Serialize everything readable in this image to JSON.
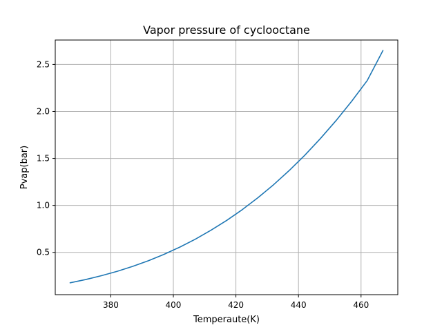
{
  "chart_data": {
    "type": "line",
    "title": "Vapor pressure of cyclooctane",
    "xlabel": "Temperaute(K)",
    "ylabel": "Pvap(bar)",
    "xlim": [
      362.25,
      471.75
    ],
    "ylim": [
      0.05,
      2.76
    ],
    "xticks": [
      380,
      400,
      420,
      440,
      460
    ],
    "yticks": [
      0.5,
      1.0,
      1.5,
      2.0,
      2.5
    ],
    "xtick_labels": [
      "380",
      "400",
      "420",
      "440",
      "460"
    ],
    "ytick_labels": [
      "0.5",
      "1.0",
      "1.5",
      "2.0",
      "2.5"
    ],
    "grid": true,
    "series": [
      {
        "name": "",
        "color": "#1f77b4",
        "x": [
          367,
          372,
          377,
          382,
          387,
          392,
          397,
          402,
          407,
          412,
          417,
          422,
          427,
          432,
          437,
          442,
          447,
          452,
          457,
          462,
          467
        ],
        "y": [
          0.176,
          0.211,
          0.252,
          0.298,
          0.351,
          0.411,
          0.479,
          0.555,
          0.64,
          0.735,
          0.839,
          0.954,
          1.081,
          1.219,
          1.37,
          1.533,
          1.711,
          1.902,
          2.108,
          2.33,
          2.648
        ]
      }
    ]
  }
}
